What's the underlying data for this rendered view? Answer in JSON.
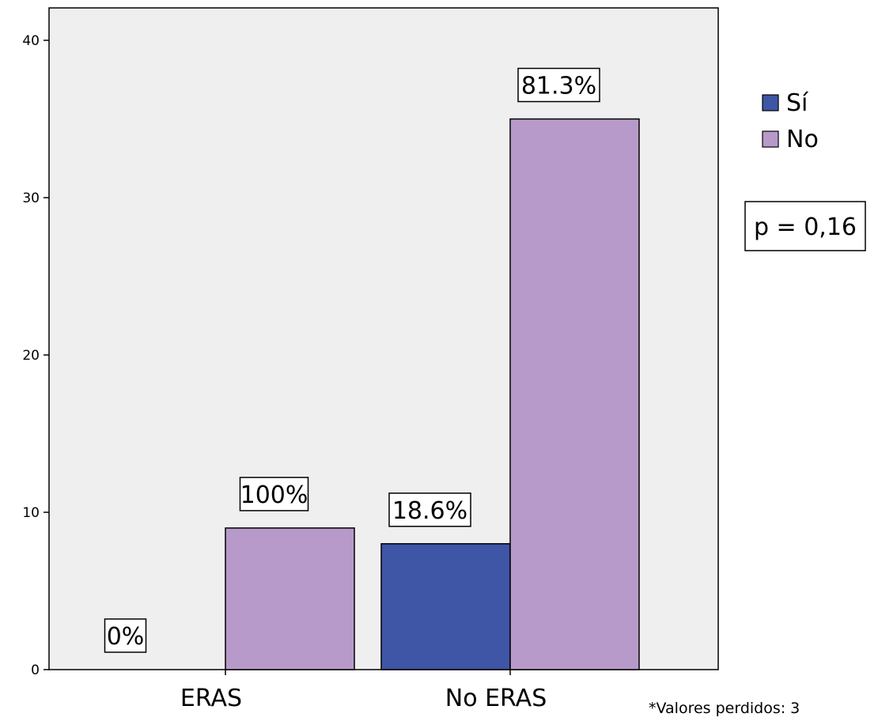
{
  "chart_data": {
    "type": "bar",
    "categories": [
      "ERAS",
      "No ERAS"
    ],
    "series": [
      {
        "name": "Sí",
        "values": [
          0,
          8
        ],
        "labels": [
          "0%",
          "18.6%"
        ],
        "color": "#3f55a5"
      },
      {
        "name": "No",
        "values": [
          9,
          35
        ],
        "labels": [
          "100%",
          "81.3%"
        ],
        "color": "#b79ac9"
      }
    ],
    "ylim": [
      0,
      40
    ],
    "yticks": [
      0,
      10,
      20,
      30,
      40
    ],
    "xlabel": "",
    "ylabel": "",
    "title": "",
    "legend": "right",
    "grid": false,
    "plot_background": "#efefef",
    "annotation": "p = 0,16",
    "footnote": "*Valores perdidos: 3"
  }
}
